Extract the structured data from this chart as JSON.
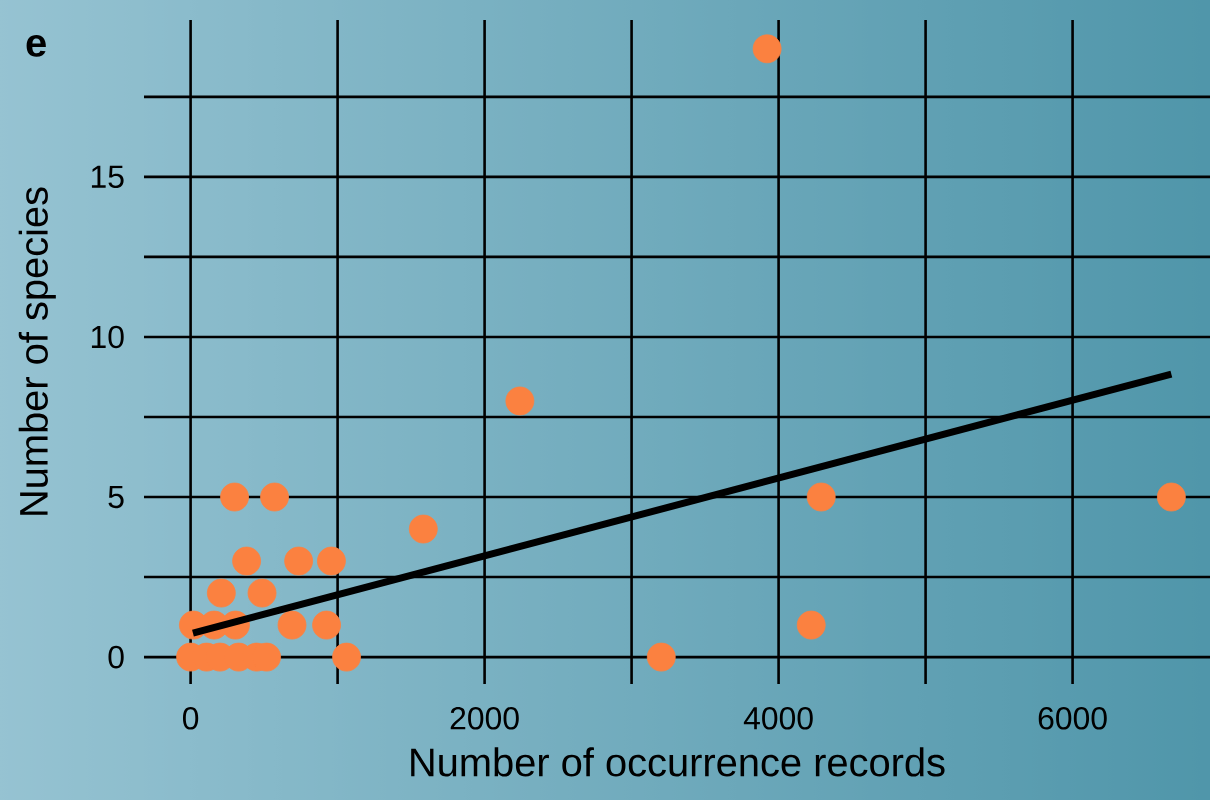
{
  "chart_data": {
    "type": "scatter",
    "title": "e",
    "xlabel": "Number of occurrence records",
    "ylabel": "Number of species",
    "xlim": [
      -317,
      6935
    ],
    "ylim": [
      -0.84,
      19.9
    ],
    "xticks": [
      0,
      {
        "value": 1000,
        "label": null
      },
      2000,
      {
        "value": 3000,
        "label": null
      },
      4000,
      {
        "value": 5000,
        "label": null
      },
      6000
    ],
    "yticks": [
      0,
      {
        "value": 2.5,
        "label": null
      },
      5,
      {
        "value": 7.5,
        "label": null
      },
      10,
      {
        "value": 12.5,
        "label": null
      },
      15,
      {
        "value": 17.5,
        "label": null
      }
    ],
    "grid": true,
    "marker": "circle",
    "series": [
      {
        "color": "#fb8140",
        "x": [
          3922,
          2240,
          1583,
          4290,
          6672,
          4222,
          3202,
          1061,
          299,
          571,
          381,
          735,
          958,
          209,
          486,
          19,
          160,
          305,
          690,
          925,
          0,
          109,
          200,
          327,
          449,
          517
        ],
        "values": [
          19,
          8,
          4,
          5,
          5,
          1,
          0,
          0,
          5,
          5,
          3,
          3,
          3,
          2,
          2,
          1,
          1,
          1,
          1,
          1,
          0,
          0,
          0,
          0,
          0,
          0
        ]
      },
      {
        "type": "line",
        "marker": "none",
        "color": "#000000",
        "x": [
          16,
          6672
        ],
        "values": [
          0.75,
          8.84
        ]
      }
    ]
  }
}
